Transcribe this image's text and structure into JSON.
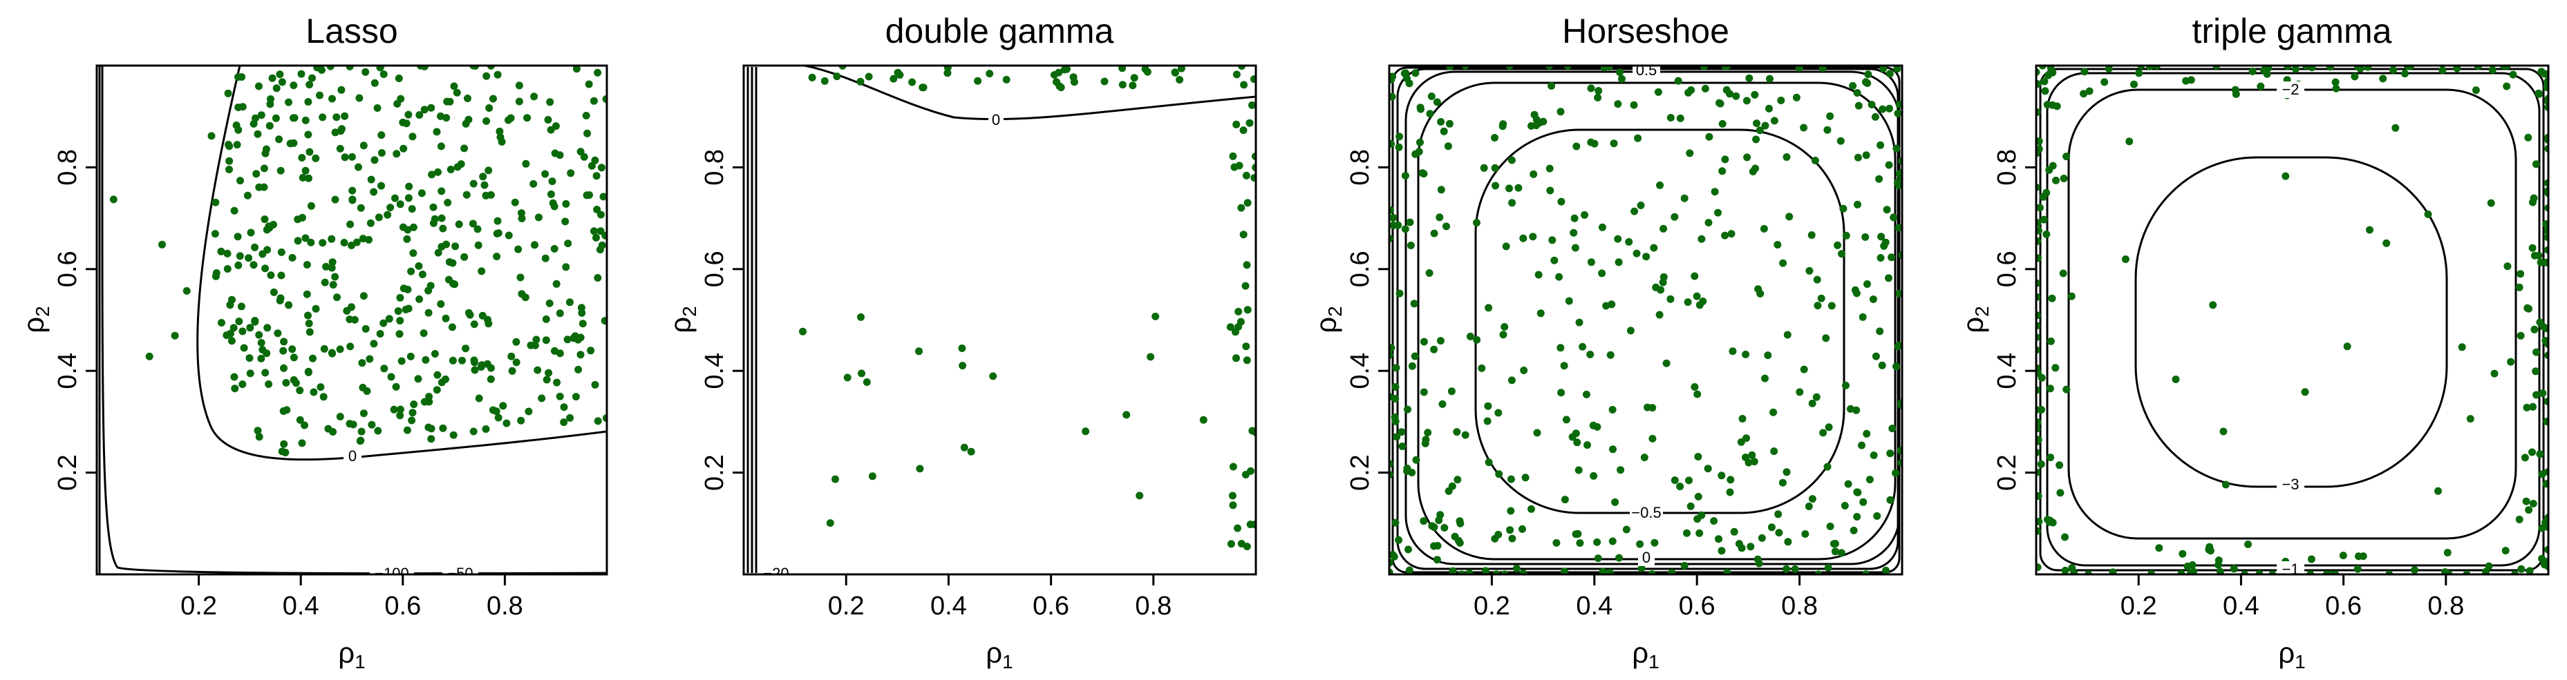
{
  "figure": {
    "point_color": "#0a6a0a",
    "contour_color": "#000000"
  },
  "chart_data": [
    {
      "type": "scatter",
      "title": "Lasso",
      "xlabel": "ρ1",
      "ylabel": "ρ2",
      "xlim": [
        0,
        1
      ],
      "ylim": [
        0,
        1
      ],
      "xticks": [
        0.2,
        0.4,
        0.6,
        0.8
      ],
      "yticks": [
        0.2,
        0.4,
        0.6,
        0.8
      ],
      "grid": false,
      "contour_labels": [
        {
          "text": "0",
          "x": 0.5,
          "y": 0.22
        },
        {
          "text": "−100",
          "x": 0.55,
          "y": 0.0
        },
        {
          "text": "−50",
          "x": 0.71,
          "y": 0.0
        }
      ],
      "point_region": "right of the 0 contour (ρ1 ≳ 0.25, ρ2 ≳ 0.2), roughly uniform",
      "point_count": 500
    },
    {
      "type": "scatter",
      "title": "double gamma",
      "xlabel": "ρ1",
      "ylabel": "ρ2",
      "xlim": [
        0,
        1
      ],
      "ylim": [
        0,
        1
      ],
      "xticks": [
        0.2,
        0.4,
        0.6,
        0.8
      ],
      "yticks": [
        0.2,
        0.4,
        0.6,
        0.8
      ],
      "grid": false,
      "contour_labels": [
        {
          "text": "0",
          "x": 0.48,
          "y": 0.88
        },
        {
          "text": "−20",
          "x": 0.05,
          "y": 0.0
        }
      ],
      "point_region": "mostly at top edge and right edge, sparse elsewhere",
      "point_count": 100
    },
    {
      "type": "scatter",
      "title": "Horseshoe",
      "xlabel": "ρ1",
      "ylabel": "ρ2",
      "xlim": [
        0,
        1
      ],
      "ylim": [
        0,
        1
      ],
      "xticks": [
        0.2,
        0.4,
        0.6,
        0.8
      ],
      "yticks": [
        0.2,
        0.4,
        0.6,
        0.8
      ],
      "grid": false,
      "contour_labels": [
        {
          "text": "0.5",
          "x": 0.5,
          "y": 0.99
        },
        {
          "text": "−0.5",
          "x": 0.5,
          "y": 0.12
        },
        {
          "text": "0",
          "x": 0.5,
          "y": 0.02
        }
      ],
      "point_region": "spread over the square, denser near the edges",
      "point_count": 470
    },
    {
      "type": "scatter",
      "title": "triple gamma",
      "xlabel": "ρ1",
      "ylabel": "ρ2",
      "xlim": [
        0,
        1
      ],
      "ylim": [
        0,
        1
      ],
      "xticks": [
        0.2,
        0.4,
        0.6,
        0.8
      ],
      "yticks": [
        0.2,
        0.4,
        0.6,
        0.8
      ],
      "grid": false,
      "contour_labels": [
        {
          "text": "−2",
          "x": 0.5,
          "y": 0.95
        },
        {
          "text": "−3",
          "x": 0.5,
          "y": 0.17
        },
        {
          "text": "−1",
          "x": 0.5,
          "y": 0.0
        }
      ],
      "point_region": "concentrated along the four edges, few inside",
      "point_count": 260
    }
  ]
}
